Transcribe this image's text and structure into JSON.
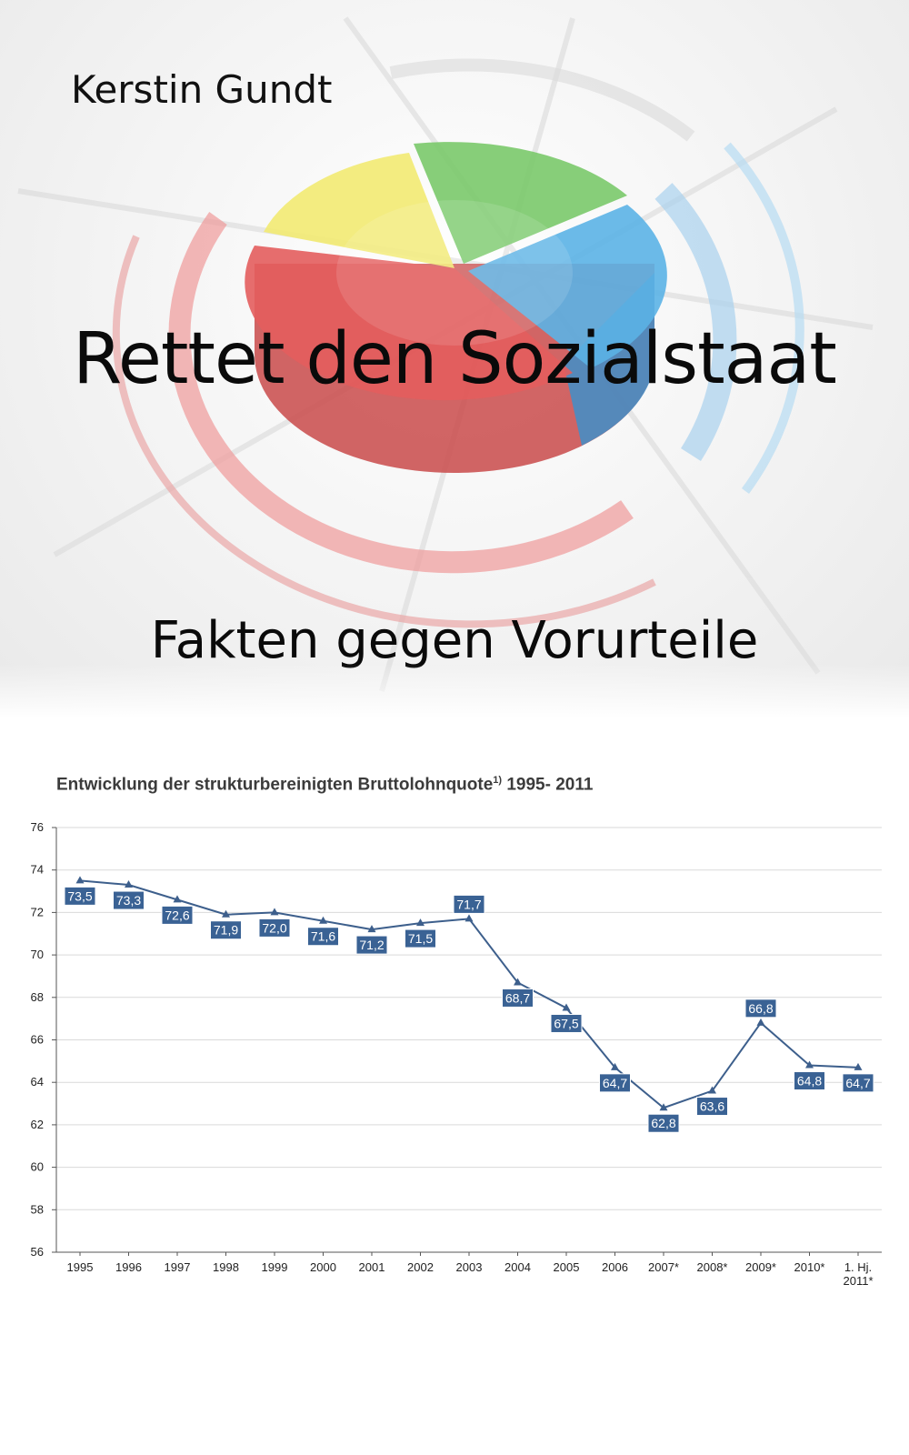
{
  "cover": {
    "author": "Kerstin Gundt",
    "title": "Rettet den Sozialstaat",
    "subtitle": "Fakten gegen Vorurteile",
    "pie_colors": {
      "red": "#e35d5d",
      "yellow": "#f2ea72",
      "green": "#7ac96a",
      "blue": "#5bb2e6"
    }
  },
  "chart_data": {
    "type": "line",
    "title": "Entwicklung der strukturbereinigten Bruttolohnquote",
    "title_sup": "1)",
    "title_range": "1995- 2011",
    "categories": [
      "1995",
      "1996",
      "1997",
      "1998",
      "1999",
      "2000",
      "2001",
      "2002",
      "2003",
      "2004",
      "2005",
      "2006",
      "2007*",
      "2008*",
      "2009*",
      "2010*",
      "1. Hj. 2011*"
    ],
    "values": [
      73.5,
      73.3,
      72.6,
      71.9,
      72.0,
      71.6,
      71.2,
      71.5,
      71.7,
      68.7,
      67.5,
      64.7,
      62.8,
      63.6,
      66.8,
      64.8,
      64.7
    ],
    "labels": [
      "73,5",
      "73,3",
      "72,6",
      "71,9",
      "72,0",
      "71,6",
      "71,2",
      "71,5",
      "71,7",
      "68,7",
      "67,5",
      "64,7",
      "62,8",
      "63,6",
      "66,8",
      "64,8",
      "64,7"
    ],
    "label_position": [
      "below",
      "below",
      "below",
      "below",
      "below",
      "below",
      "below",
      "below",
      "above",
      "below",
      "below",
      "below",
      "below",
      "below",
      "above",
      "below",
      "below"
    ],
    "yticks": [
      "76",
      "74",
      "72",
      "70",
      "68",
      "66",
      "64",
      "62",
      "60",
      "58",
      "56"
    ],
    "ylim": [
      56,
      76
    ],
    "grid": true,
    "line_color": "#3d5f8c",
    "label_color": "#3a6294"
  }
}
